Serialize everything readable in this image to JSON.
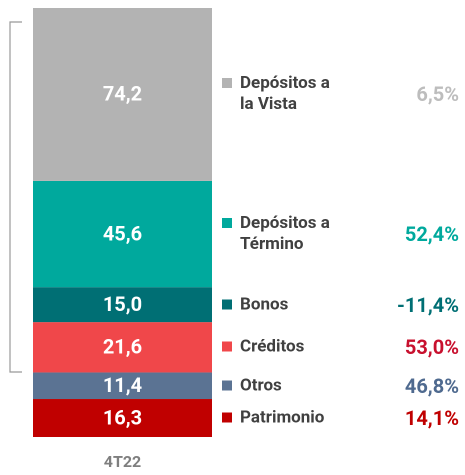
{
  "chart_data": {
    "type": "stacked_bar",
    "categories": [
      "4T22"
    ],
    "ylim": [
      0,
      184.1
    ],
    "series": [
      {
        "name": "Patrimonio",
        "color": "#c00000",
        "values": [
          16.3
        ],
        "value_labels": [
          "16,3"
        ],
        "change": 14.1,
        "change_label": "14,1%",
        "change_color": "#c00000"
      },
      {
        "name": "Otros",
        "color": "#5b7393",
        "values": [
          11.4
        ],
        "value_labels": [
          "11,4"
        ],
        "change": 46.8,
        "change_label": "46,8%",
        "change_color": "#4f6a8f"
      },
      {
        "name": "Créditos",
        "color": "#f0474a",
        "values": [
          21.6
        ],
        "value_labels": [
          "21,6"
        ],
        "change": 53.0,
        "change_label": "53,0%",
        "change_color": "#c8102e"
      },
      {
        "name": "Bonos",
        "color": "#006f74",
        "values": [
          15.0
        ],
        "value_labels": [
          "15,0"
        ],
        "change": -11.4,
        "change_label": "-11,4%",
        "change_color": "#006f74"
      },
      {
        "name": "Depósitos a Término",
        "color": "#00a99d",
        "values": [
          45.6
        ],
        "value_labels": [
          "45,6"
        ],
        "change": 52.4,
        "change_label": "52,4%",
        "change_color": "#00a99d"
      },
      {
        "name": "Depósitos a la Vista",
        "color": "#b3b3b3",
        "values": [
          74.2
        ],
        "value_labels": [
          "74,2"
        ],
        "change": 6.5,
        "change_label": "6,5%",
        "change_color": "#bdbdbd"
      }
    ]
  }
}
